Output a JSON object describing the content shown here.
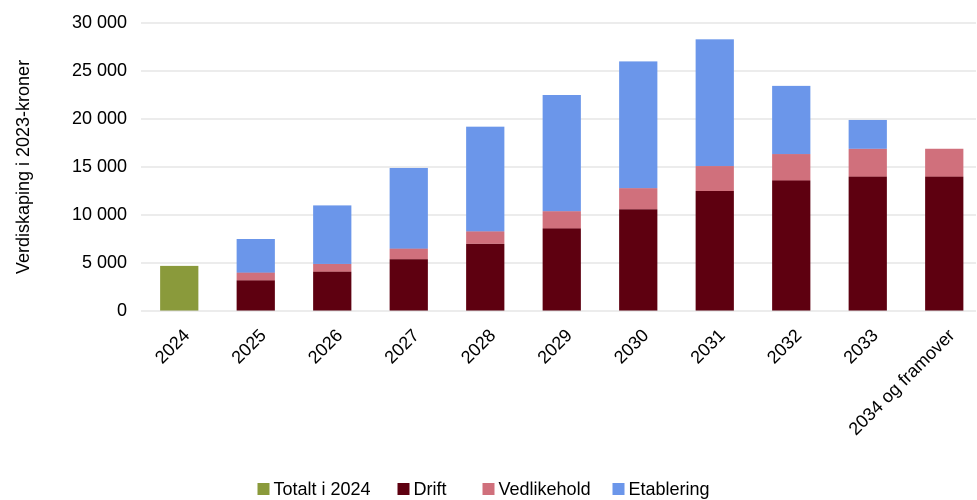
{
  "chart_data": {
    "type": "stacked_bar",
    "y_label": "Verdiskaping i 2023-kroner",
    "categories": [
      "2024",
      "2025",
      "2026",
      "2027",
      "2028",
      "2029",
      "2030",
      "2031",
      "2032",
      "2033",
      "2034 og framover"
    ],
    "series": [
      {
        "name": "Totalt i 2024",
        "color": "#8a9a3b",
        "values": [
          4700,
          null,
          null,
          null,
          null,
          null,
          null,
          null,
          null,
          null,
          null
        ]
      },
      {
        "name": "Drift",
        "color": "#5e0010",
        "values": [
          null,
          3200,
          4100,
          5400,
          7000,
          8600,
          10600,
          12500,
          13600,
          14000,
          14000
        ]
      },
      {
        "name": "Vedlikehold",
        "color": "#d0707c",
        "values": [
          null,
          800,
          800,
          1100,
          1300,
          1800,
          2200,
          2600,
          2750,
          2900,
          2900
        ]
      },
      {
        "name": "Etablering",
        "color": "#6b96ea",
        "values": [
          null,
          3500,
          6100,
          8400,
          10900,
          12100,
          13200,
          13200,
          7100,
          3000,
          null
        ]
      }
    ],
    "ylim": [
      0,
      30000
    ],
    "yticks": [
      0,
      {
        "value": 5000,
        "label": "5 000"
      },
      {
        "value": 10000,
        "label": "10 000"
      },
      {
        "value": 15000,
        "label": "15 000"
      },
      {
        "value": 20000,
        "label": "20 000"
      },
      {
        "value": 25000,
        "label": "25 000"
      },
      {
        "value": 30000,
        "label": "30 000"
      }
    ],
    "grid": true,
    "legend": "bottom"
  }
}
